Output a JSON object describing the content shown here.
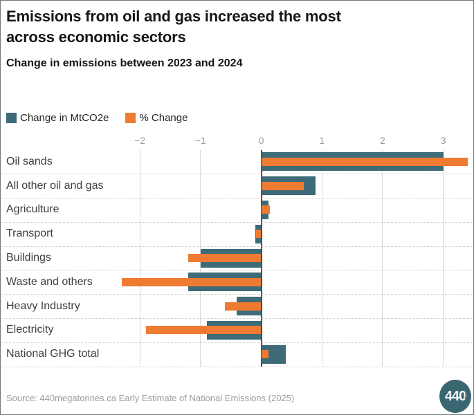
{
  "header": {
    "title_line1": "Emissions from oil and gas increased the most",
    "title_line2": "across economic sectors",
    "subtitle": "Change in emissions between 2023 and 2024"
  },
  "legend": {
    "items": [
      {
        "label": "Change in MtCO2e",
        "color": "#3e6b77"
      },
      {
        "label": "% Change",
        "color": "#ee7b31"
      }
    ]
  },
  "chart_data": {
    "type": "bar",
    "orientation": "horizontal",
    "title": "Emissions from oil and gas increased the most across economic sectors",
    "subtitle": "Change in emissions between 2023 and 2024",
    "categories": [
      "Oil sands",
      "All other oil and gas",
      "Agriculture",
      "Transport",
      "Buildings",
      "Waste and others",
      "Heavy Industry",
      "Electricity",
      "National GHG total"
    ],
    "series": [
      {
        "name": "Change in MtCO2e",
        "color": "#3e6b77",
        "values": [
          3.0,
          0.9,
          0.12,
          -0.1,
          -1.0,
          -1.2,
          -0.4,
          -0.9,
          0.4
        ]
      },
      {
        "name": "% Change",
        "color": "#ee7b31",
        "values": [
          3.4,
          0.7,
          0.14,
          -0.08,
          -1.2,
          -2.3,
          -0.6,
          -1.9,
          0.12
        ]
      }
    ],
    "xticks": [
      -2,
      -1,
      0,
      1,
      2,
      3
    ],
    "xlim": [
      -2.4,
      3.5
    ],
    "grid": "vertical-at-ticks",
    "zero_line": true,
    "legend_position": "top-left"
  },
  "footer": {
    "source": "Source: 440megatonnes.ca Early Estimate of National Emissions (2025)",
    "logo": {
      "text": "440",
      "arrow": "↓"
    }
  },
  "colors": {
    "teal": "#3e6b77",
    "orange": "#ee7b31",
    "grid": "#d9d9d9",
    "zero_line": "#4c4c4c",
    "axis_text": "#9a9a9a",
    "label_text": "#3e3e3e",
    "source_text": "#9b9b9b",
    "logo_bg": "#3a6672",
    "logo_arrow": "#e03a2f",
    "background": "#ffffff"
  }
}
